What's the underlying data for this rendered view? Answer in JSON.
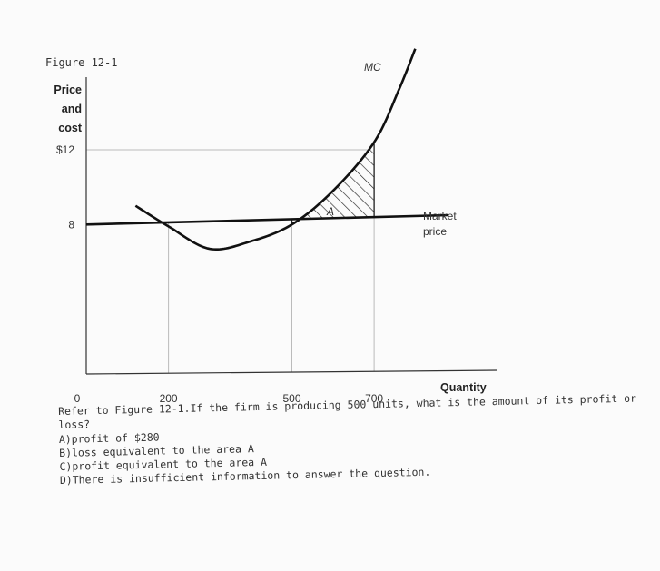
{
  "figure_label": "Figure 12-1",
  "chart_data": {
    "type": "line",
    "title": "",
    "ylabel_lines": [
      "Price",
      "and",
      "cost"
    ],
    "xlabel": "Quantity",
    "x_ticks": [
      {
        "value": 0,
        "label": "0"
      },
      {
        "value": 200,
        "label": "200"
      },
      {
        "value": 500,
        "label": "500"
      },
      {
        "value": 700,
        "label": "700"
      }
    ],
    "y_ticks": [
      {
        "value": 12,
        "label": "$12"
      },
      {
        "value": 8,
        "label": "8"
      }
    ],
    "xlim": [
      0,
      1000
    ],
    "ylim": [
      0,
      17
    ],
    "series": [
      {
        "name": "MC",
        "curve_label": "MC",
        "points": [
          [
            120,
            9.0
          ],
          [
            200,
            7.9
          ],
          [
            300,
            6.7
          ],
          [
            400,
            7.1
          ],
          [
            500,
            8.0
          ],
          [
            600,
            9.8
          ],
          [
            700,
            12.4
          ],
          [
            760,
            15.2
          ],
          [
            800,
            17.4
          ]
        ]
      },
      {
        "name": "Market price",
        "curve_label_lines": [
          "Market",
          "price"
        ],
        "points": [
          [
            0,
            8.0
          ],
          [
            880,
            8.5
          ]
        ]
      }
    ],
    "reference_lines": {
      "horizontal": [
        12
      ],
      "vertical": [
        200,
        500,
        700
      ]
    },
    "shaded_region": {
      "label": "A",
      "x_range": [
        500,
        700
      ],
      "between": [
        "Market price",
        "MC"
      ]
    }
  },
  "question": {
    "stem": "Refer to Figure 12-1.If the firm is producing 500 units, what is the amount of its profit or loss?",
    "options": [
      "A)profit of $280",
      "B)loss equivalent to the area A",
      "C)profit equivalent to the area A",
      "D)There is insufficient information to answer the question."
    ]
  }
}
